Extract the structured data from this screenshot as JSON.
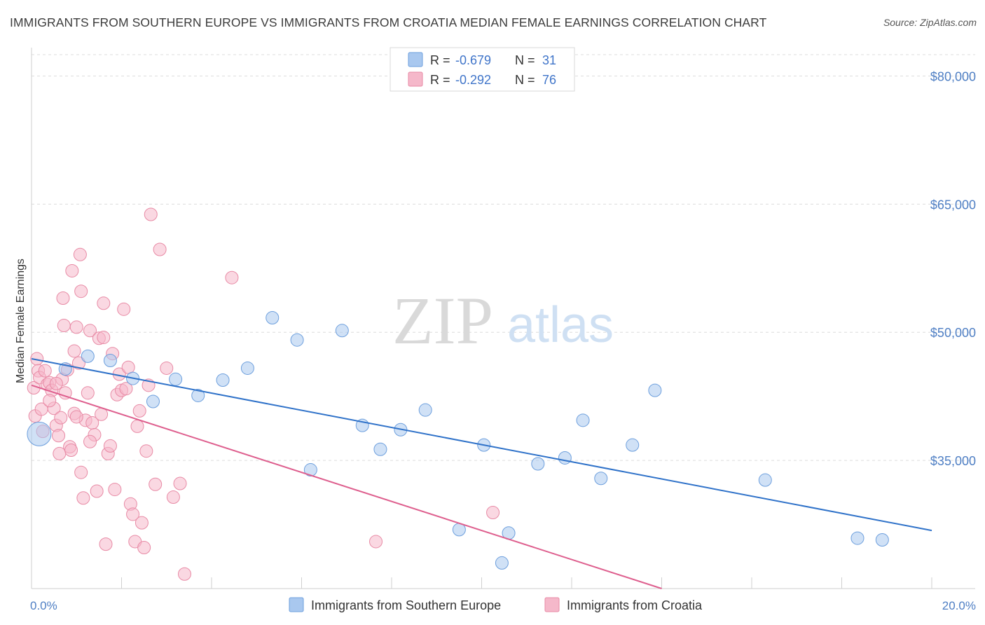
{
  "header": {
    "title": "IMMIGRANTS FROM SOUTHERN EUROPE VS IMMIGRANTS FROM CROATIA MEDIAN FEMALE EARNINGS CORRELATION CHART",
    "source": "Source: ZipAtlas.com"
  },
  "watermark": {
    "zip": "ZIP",
    "atlas": "atlas"
  },
  "legend_top": {
    "rows": [
      {
        "r_label": "R =",
        "r_value": "-0.679",
        "n_label": "N =",
        "n_value": "31",
        "color": "#a9c8ef"
      },
      {
        "r_label": "R =",
        "r_value": "-0.292",
        "n_label": "N =",
        "n_value": "76",
        "color": "#f5b8ca"
      }
    ]
  },
  "chart_data": {
    "type": "scatter",
    "title": "IMMIGRANTS FROM SOUTHERN EUROPE VS IMMIGRANTS FROM CROATIA MEDIAN FEMALE EARNINGS CORRELATION CHART",
    "xlabel": "",
    "ylabel": "Median Female Earnings",
    "xlim": [
      0,
      20
    ],
    "ylim": [
      20000,
      82500
    ],
    "x_ticks": [
      0,
      2,
      4,
      6,
      8,
      10,
      12,
      14,
      16,
      18,
      20
    ],
    "x_tick_labels": {
      "0": "0.0%",
      "20": "20.0%"
    },
    "y_ticks": [
      35000,
      50000,
      65000,
      80000
    ],
    "y_tick_labels": [
      "$35,000",
      "$50,000",
      "$65,000",
      "$80,000"
    ],
    "grid": true,
    "legend_position": "top-center",
    "series": [
      {
        "name": "Immigrants from Southern Europe",
        "color": "#a9c8ef",
        "stroke": "#6d9fdd",
        "line_color": "#2f72c9",
        "trend": {
          "x": [
            0,
            20
          ],
          "y": [
            46900,
            26800
          ]
        },
        "points": [
          [
            0.17,
            38100
          ],
          [
            0.75,
            45700
          ],
          [
            1.25,
            47200
          ],
          [
            1.75,
            46700
          ],
          [
            2.25,
            44600
          ],
          [
            2.7,
            41900
          ],
          [
            3.2,
            44500
          ],
          [
            3.7,
            42600
          ],
          [
            4.25,
            44400
          ],
          [
            4.8,
            45800
          ],
          [
            5.35,
            51700
          ],
          [
            5.9,
            49100
          ],
          [
            6.2,
            33900
          ],
          [
            6.9,
            50200
          ],
          [
            7.35,
            39100
          ],
          [
            7.75,
            36300
          ],
          [
            8.2,
            38600
          ],
          [
            8.75,
            40900
          ],
          [
            9.5,
            26900
          ],
          [
            10.05,
            36800
          ],
          [
            10.45,
            23000
          ],
          [
            10.6,
            26500
          ],
          [
            11.25,
            34600
          ],
          [
            11.85,
            35300
          ],
          [
            12.25,
            39700
          ],
          [
            12.65,
            32900
          ],
          [
            13.35,
            36800
          ],
          [
            13.85,
            43200
          ],
          [
            16.3,
            32700
          ],
          [
            18.35,
            25900
          ],
          [
            18.9,
            25700
          ]
        ],
        "sizes": [
          34,
          18,
          18,
          18,
          18,
          18,
          18,
          18,
          18,
          18,
          18,
          18,
          18,
          18,
          18,
          18,
          18,
          18,
          18,
          18,
          18,
          18,
          18,
          18,
          18,
          18,
          18,
          18,
          18,
          18,
          18
        ]
      },
      {
        "name": "Immigrants from Croatia",
        "color": "#f5b8ca",
        "stroke": "#e88aa5",
        "line_color": "#de5f8e",
        "trend": {
          "x": [
            0,
            14.0
          ],
          "y": [
            43800,
            20000
          ]
        },
        "points": [
          [
            0.05,
            43500
          ],
          [
            0.08,
            40200
          ],
          [
            0.12,
            46900
          ],
          [
            0.15,
            45500
          ],
          [
            0.18,
            44700
          ],
          [
            0.22,
            41000
          ],
          [
            0.25,
            38400
          ],
          [
            0.3,
            45500
          ],
          [
            0.35,
            43900
          ],
          [
            0.4,
            44100
          ],
          [
            0.45,
            43200
          ],
          [
            0.5,
            41100
          ],
          [
            0.55,
            39100
          ],
          [
            0.6,
            37900
          ],
          [
            0.62,
            35800
          ],
          [
            0.65,
            40000
          ],
          [
            0.68,
            44500
          ],
          [
            0.7,
            54000
          ],
          [
            0.72,
            50800
          ],
          [
            0.75,
            42900
          ],
          [
            0.8,
            45600
          ],
          [
            0.85,
            36600
          ],
          [
            0.88,
            36200
          ],
          [
            0.9,
            57200
          ],
          [
            0.95,
            40500
          ],
          [
            1.0,
            50600
          ],
          [
            1.05,
            46400
          ],
          [
            1.08,
            59100
          ],
          [
            1.1,
            54800
          ],
          [
            1.15,
            30600
          ],
          [
            1.2,
            39700
          ],
          [
            1.25,
            42900
          ],
          [
            1.3,
            50200
          ],
          [
            1.35,
            39400
          ],
          [
            1.4,
            38000
          ],
          [
            1.45,
            31400
          ],
          [
            1.5,
            49300
          ],
          [
            1.55,
            40400
          ],
          [
            1.6,
            53400
          ],
          [
            1.65,
            25200
          ],
          [
            1.7,
            35800
          ],
          [
            1.75,
            36700
          ],
          [
            1.8,
            47500
          ],
          [
            1.85,
            31600
          ],
          [
            1.9,
            42700
          ],
          [
            1.95,
            45100
          ],
          [
            2.0,
            43200
          ],
          [
            2.05,
            52700
          ],
          [
            2.1,
            43400
          ],
          [
            2.15,
            45900
          ],
          [
            2.2,
            29900
          ],
          [
            2.25,
            28700
          ],
          [
            2.3,
            25500
          ],
          [
            2.35,
            39000
          ],
          [
            2.4,
            40800
          ],
          [
            2.45,
            27700
          ],
          [
            2.5,
            24800
          ],
          [
            2.55,
            36100
          ],
          [
            2.6,
            43800
          ],
          [
            2.65,
            63800
          ],
          [
            2.75,
            32200
          ],
          [
            2.85,
            59700
          ],
          [
            3.0,
            45800
          ],
          [
            3.15,
            30700
          ],
          [
            3.3,
            32300
          ],
          [
            3.4,
            21700
          ],
          [
            4.45,
            56400
          ],
          [
            7.65,
            25500
          ],
          [
            10.25,
            28900
          ],
          [
            1.0,
            40100
          ],
          [
            0.55,
            44000
          ],
          [
            0.95,
            47800
          ],
          [
            1.3,
            37200
          ],
          [
            1.6,
            49400
          ],
          [
            0.4,
            42000
          ],
          [
            1.1,
            33600
          ]
        ],
        "sizes": [
          18
        ]
      }
    ]
  },
  "legend_bottom": {
    "items": [
      {
        "label": "Immigrants from Southern Europe",
        "color": "#a9c8ef",
        "stroke": "#6d9fdd"
      },
      {
        "label": "Immigrants from Croatia",
        "color": "#f5b8ca",
        "stroke": "#e88aa5"
      }
    ]
  }
}
